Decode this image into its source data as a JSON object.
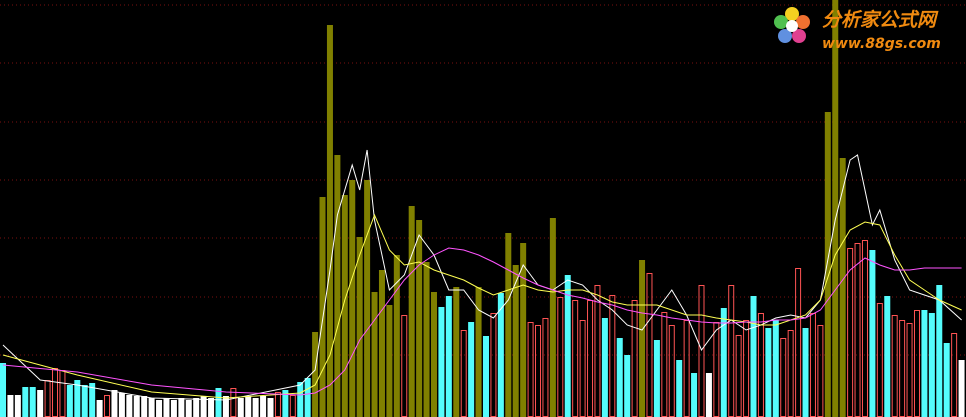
{
  "logo": {
    "title": "分析家公式网",
    "url": "www.88gs.com"
  },
  "chart_data": {
    "type": "bar",
    "ylim": [
      0,
      417
    ],
    "grid": true,
    "outline_colors": [
      "#ff5454"
    ],
    "values": [
      54,
      22,
      22,
      30,
      30,
      27,
      37,
      49,
      47,
      32,
      37,
      32,
      34,
      17,
      22,
      27,
      24,
      22,
      21,
      21,
      19,
      17,
      19,
      17,
      19,
      17,
      19,
      21,
      19,
      29,
      21,
      29,
      19,
      21,
      19,
      21,
      19,
      25,
      27,
      22,
      35,
      39,
      85,
      220,
      392,
      262,
      222,
      237,
      180,
      237,
      125,
      147,
      112,
      162,
      102,
      211,
      197,
      155,
      125,
      110,
      121,
      130,
      87,
      95,
      130,
      81,
      104,
      124,
      184,
      152,
      174,
      95,
      92,
      99,
      199,
      120,
      142,
      117,
      97,
      117,
      132,
      99,
      122,
      79,
      62,
      117,
      157,
      144,
      77,
      105,
      92,
      57,
      97,
      44,
      132,
      44,
      95,
      109,
      132,
      82,
      97,
      121,
      104,
      89,
      97,
      79,
      87,
      149,
      89,
      104,
      92,
      305,
      417,
      259,
      169,
      174,
      177,
      167,
      114,
      121,
      102,
      97,
      94,
      107,
      107,
      104,
      132,
      74,
      84,
      57
    ],
    "colors": [
      "#54fcfc",
      "#ffffff",
      "#ffffff",
      "#54fcfc",
      "#54fcfc",
      "#ffffff",
      "#ff5454",
      "#ff5454",
      "#ff5454",
      "#54fcfc",
      "#54fcfc",
      "#54fcfc",
      "#54fcfc",
      "#ffffff",
      "#ff5454",
      "#ffffff",
      "#ffffff",
      "#ffffff",
      "#ffffff",
      "#ffffff",
      "#ffffff",
      "#ffffff",
      "#ffffff",
      "#ffffff",
      "#ffffff",
      "#ffffff",
      "#ffffff",
      "#ffffff",
      "#ffffff",
      "#54fcfc",
      "#ffffff",
      "#ff5454",
      "#ffffff",
      "#ffffff",
      "#ffffff",
      "#ffffff",
      "#ffffff",
      "#ff5454",
      "#54fcfc",
      "#ff5454",
      "#54fcfc",
      "#54fcfc",
      "#808000",
      "#808000",
      "#808000",
      "#808000",
      "#808000",
      "#808000",
      "#808000",
      "#808000",
      "#808000",
      "#808000",
      "#808000",
      "#808000",
      "#ff5454",
      "#808000",
      "#808000",
      "#808000",
      "#808000",
      "#54fcfc",
      "#54fcfc",
      "#808000",
      "#ff5454",
      "#54fcfc",
      "#808000",
      "#54fcfc",
      "#ff5454",
      "#54fcfc",
      "#808000",
      "#808000",
      "#808000",
      "#ff5454",
      "#ff5454",
      "#ff5454",
      "#808000",
      "#ff5454",
      "#54fcfc",
      "#ff5454",
      "#ff5454",
      "#ff5454",
      "#ff5454",
      "#54fcfc",
      "#ff5454",
      "#54fcfc",
      "#54fcfc",
      "#ff5454",
      "#808000",
      "#ff5454",
      "#54fcfc",
      "#ff5454",
      "#ff5454",
      "#54fcfc",
      "#ff5454",
      "#54fcfc",
      "#ff5454",
      "#ffffff",
      "#ff5454",
      "#54fcfc",
      "#ff5454",
      "#ff5454",
      "#ff5454",
      "#54fcfc",
      "#ff5454",
      "#54fcfc",
      "#54fcfc",
      "#ff5454",
      "#ff5454",
      "#ff5454",
      "#54fcfc",
      "#ff5454",
      "#ff5454",
      "#808000",
      "#808000",
      "#808000",
      "#ff5454",
      "#ff5454",
      "#ff5454",
      "#54fcfc",
      "#ff5454",
      "#54fcfc",
      "#ff5454",
      "#ff5454",
      "#ff5454",
      "#ff5454",
      "#54fcfc",
      "#54fcfc",
      "#54fcfc",
      "#54fcfc",
      "#ff5454",
      "#ffffff"
    ],
    "lines": [
      {
        "color": "#ffffff",
        "x": [
          0,
          5,
          10,
          20,
          30,
          40,
          42,
          44,
          45,
          47,
          48,
          49,
          50,
          52,
          54,
          56,
          58,
          60,
          62,
          64,
          66,
          68,
          70,
          72,
          74,
          76,
          78,
          80,
          82,
          84,
          86,
          88,
          90,
          92,
          94,
          96,
          98,
          100,
          102,
          104,
          106,
          108,
          110,
          112,
          114,
          115,
          117,
          118,
          120,
          122,
          124,
          126,
          129
        ],
        "values": [
          72,
          37,
          32,
          19,
          17,
          32,
          47,
          147,
          202,
          252,
          227,
          267,
          197,
          127,
          142,
          182,
          162,
          127,
          127,
          107,
          99,
          117,
          152,
          132,
          127,
          137,
          132,
          117,
          107,
          92,
          87,
          107,
          127,
          102,
          67,
          87,
          97,
          87,
          92,
          99,
          102,
          99,
          117,
          197,
          257,
          262,
          192,
          207,
          157,
          127,
          122,
          117,
          97
        ]
      },
      {
        "color": "#ffff54",
        "x": [
          0,
          10,
          20,
          30,
          40,
          42,
          44,
          46,
          48,
          50,
          52,
          54,
          56,
          58,
          60,
          62,
          64,
          66,
          68,
          70,
          72,
          74,
          76,
          78,
          80,
          82,
          84,
          86,
          88,
          90,
          92,
          94,
          96,
          98,
          100,
          102,
          104,
          106,
          108,
          110,
          112,
          114,
          116,
          118,
          120,
          122,
          124,
          126,
          129
        ],
        "values": [
          62,
          42,
          25,
          19,
          24,
          32,
          62,
          117,
          162,
          202,
          167,
          152,
          155,
          147,
          142,
          137,
          129,
          122,
          127,
          132,
          127,
          125,
          127,
          127,
          122,
          115,
          112,
          112,
          112,
          107,
          102,
          102,
          99,
          97,
          95,
          92,
          92,
          97,
          102,
          117,
          162,
          187,
          195,
          192,
          162,
          137,
          127,
          117,
          107
        ]
      },
      {
        "color": "#ff54ff",
        "x": [
          0,
          10,
          20,
          30,
          40,
          42,
          44,
          46,
          48,
          50,
          52,
          54,
          56,
          58,
          60,
          62,
          64,
          66,
          68,
          70,
          72,
          74,
          76,
          78,
          80,
          82,
          84,
          86,
          88,
          90,
          92,
          94,
          96,
          98,
          100,
          102,
          104,
          106,
          108,
          110,
          112,
          114,
          116,
          118,
          120,
          122,
          124,
          126,
          129
        ],
        "values": [
          52,
          45,
          32,
          25,
          22,
          24,
          32,
          47,
          77,
          97,
          117,
          137,
          152,
          162,
          169,
          167,
          162,
          155,
          147,
          139,
          132,
          127,
          122,
          119,
          115,
          112,
          107,
          104,
          102,
          99,
          97,
          95,
          94,
          94,
          95,
          95,
          97,
          97,
          99,
          107,
          127,
          147,
          159,
          152,
          147,
          147,
          149,
          149,
          149
        ]
      }
    ]
  }
}
